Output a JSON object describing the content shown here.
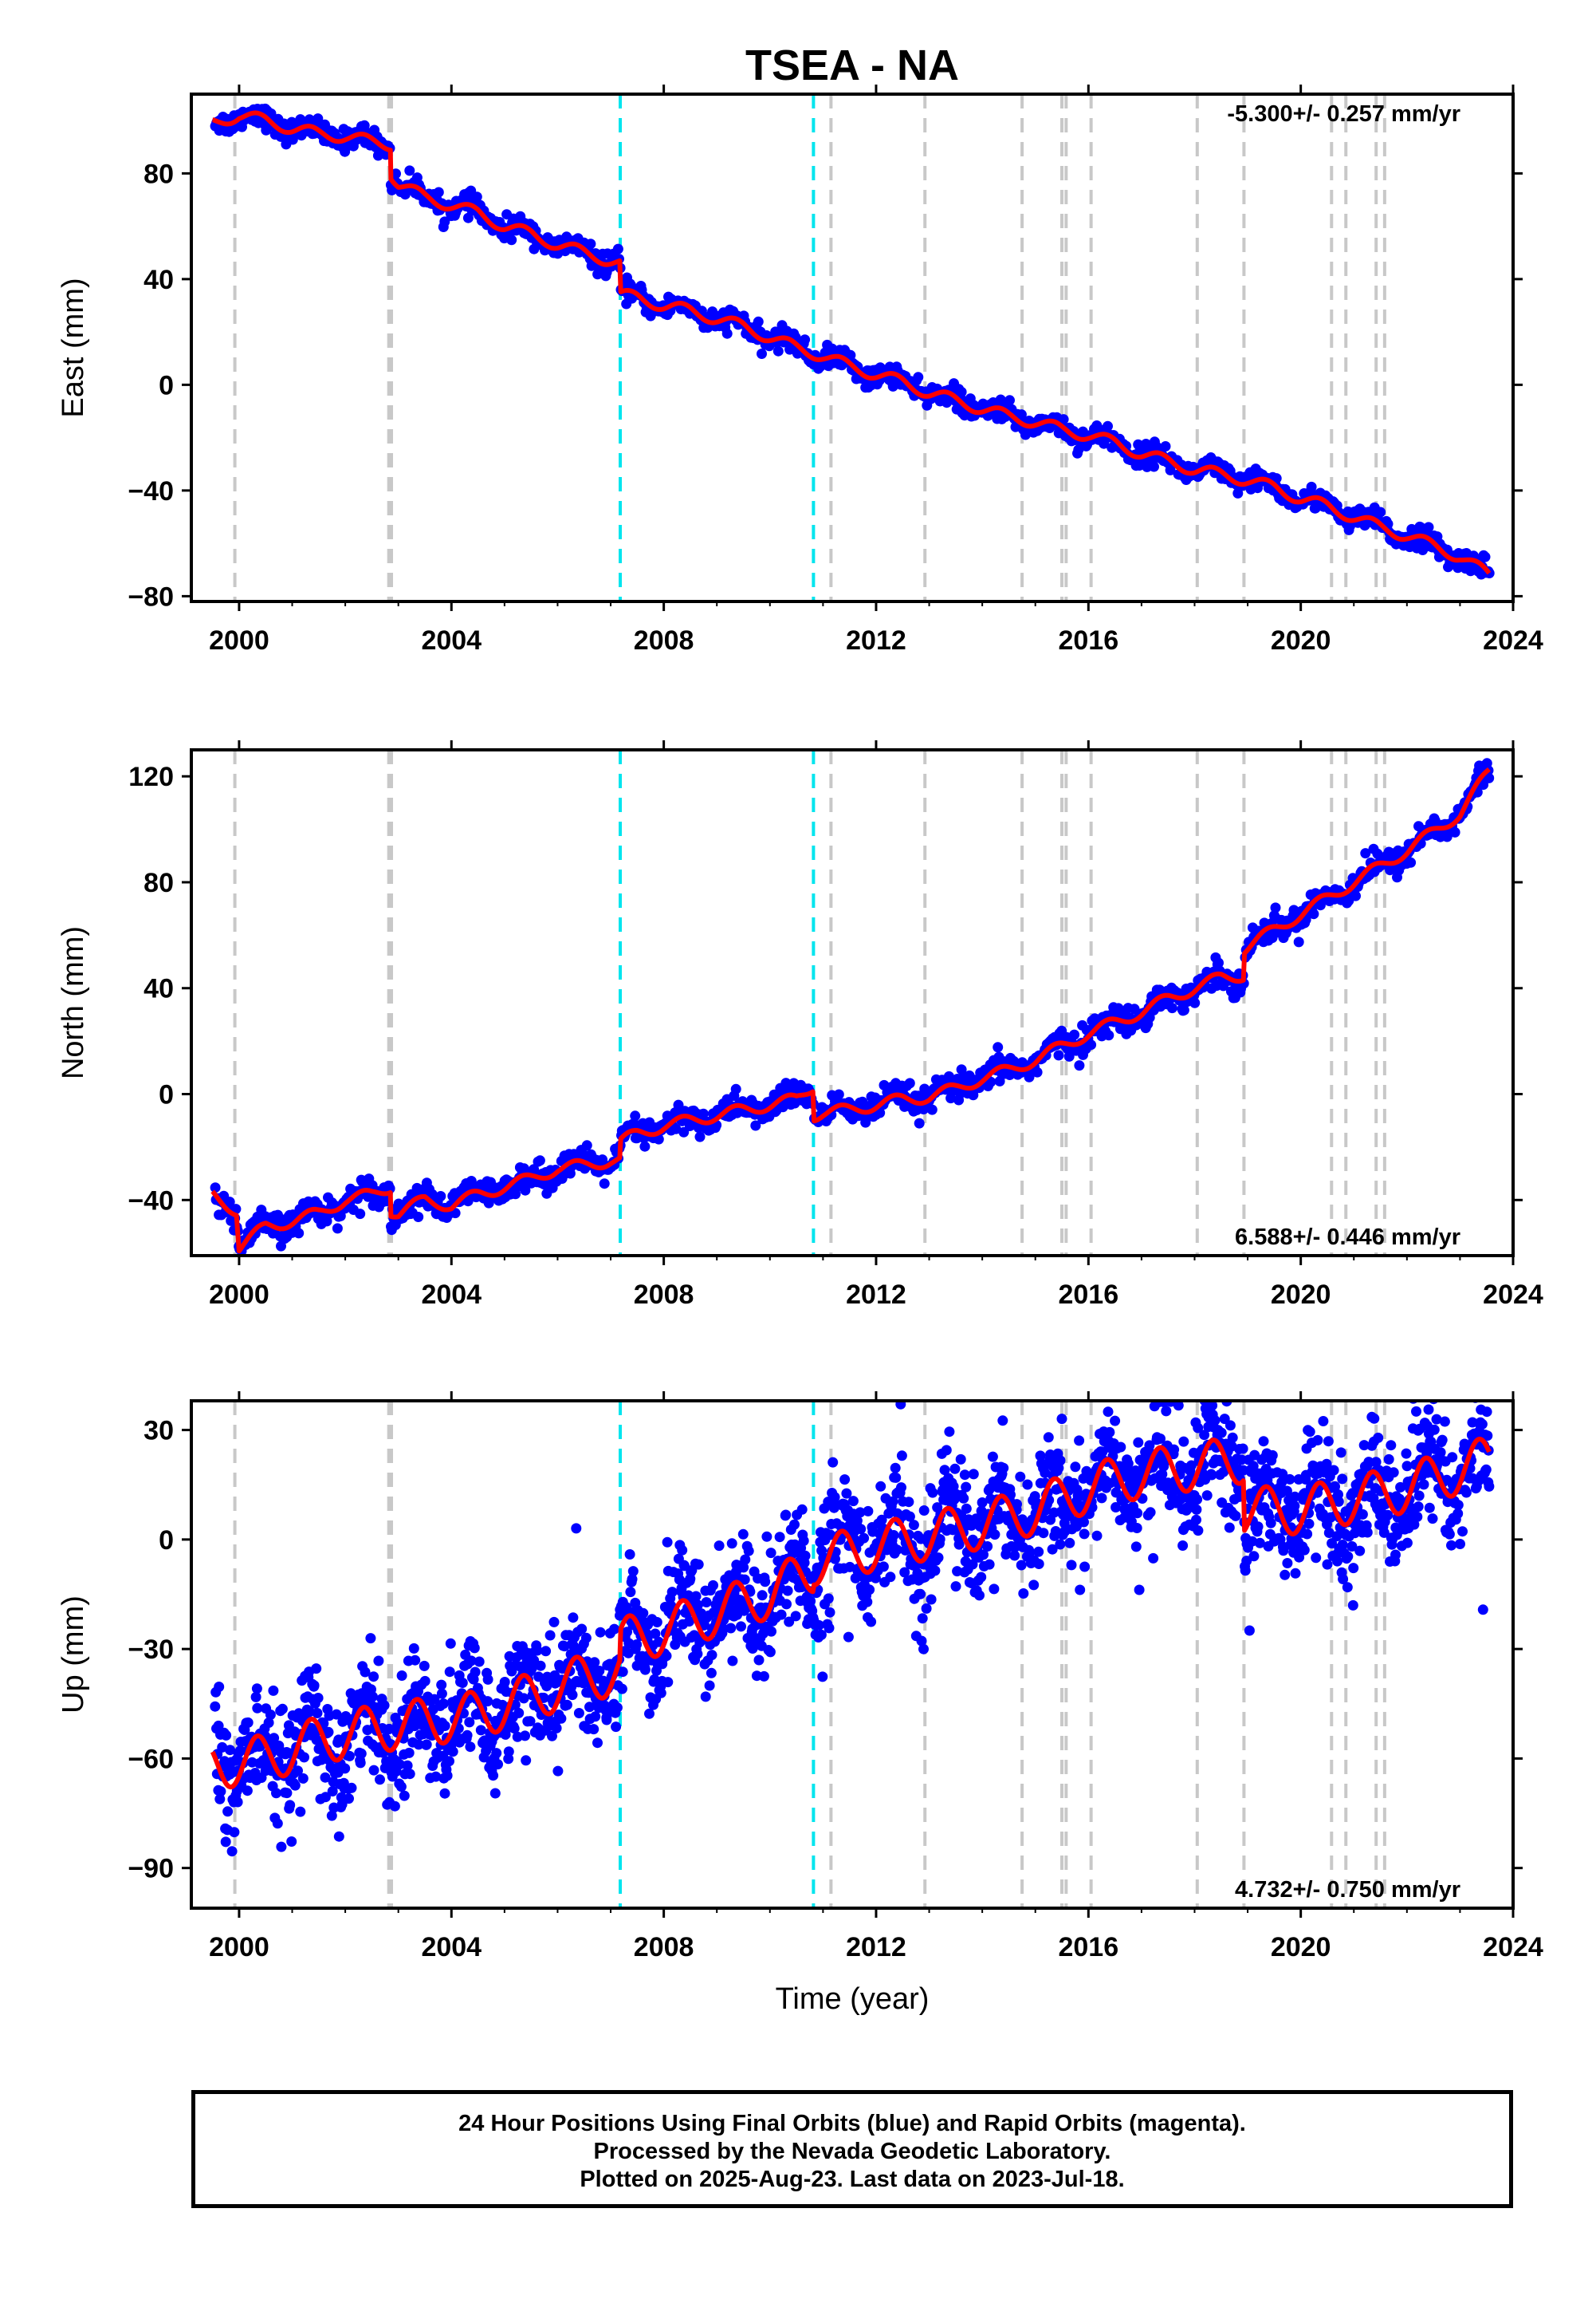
{
  "title": "TSEA - NA",
  "x_axis": {
    "label": "Time (year)",
    "range": [
      1999.1,
      2024.0
    ],
    "ticks": [
      2000,
      2004,
      2008,
      2012,
      2016,
      2020,
      2024
    ]
  },
  "colors": {
    "points": "#0000ff",
    "model": "#ff0000",
    "equipment_change": "#c8c8c8",
    "earthquake": "#00e5ee"
  },
  "event_lines": {
    "equipment_change": [
      1999.92,
      2002.82,
      2002.87,
      2011.15,
      2012.92,
      2014.75,
      2015.5,
      2015.58,
      2016.05,
      2018.05,
      2018.93,
      2020.58,
      2020.85,
      2021.42,
      2021.58
    ],
    "earthquake": [
      2007.18,
      2010.82
    ]
  },
  "chart_data": [
    {
      "type": "scatter",
      "component": "east",
      "ylabel": "East (mm)",
      "ylim": [
        -82,
        110
      ],
      "yticks": [
        -80,
        -40,
        0,
        40,
        80
      ],
      "rate_label": "-5.300+/- 0.257 mm/yr",
      "rate_position": "top-right",
      "series": [
        {
          "name": "",
          "kind": "model-line",
          "x": [
            1999.5,
            2000.0,
            2000.5,
            2001.0,
            2001.5,
            2002.0,
            2002.5,
            2002.85,
            2002.86,
            2003.0,
            2003.5,
            2004.0,
            2004.5,
            2005.0,
            2005.5,
            2006.0,
            2006.5,
            2007.0,
            2007.17,
            2007.19,
            2007.5,
            2008.0,
            2008.5,
            2009.0,
            2009.5,
            2010.0,
            2010.5,
            2011.0,
            2011.5,
            2012.0,
            2012.5,
            2013.0,
            2013.5,
            2014.0,
            2014.5,
            2015.0,
            2015.5,
            2016.0,
            2016.5,
            2017.0,
            2017.5,
            2018.0,
            2018.5,
            2019.0,
            2019.5,
            2020.0,
            2020.5,
            2021.0,
            2021.5,
            2022.0,
            2022.5,
            2023.0,
            2023.55
          ],
          "y": [
            99,
            102,
            100,
            97,
            95,
            94,
            92,
            91,
            80,
            76,
            71,
            68,
            65,
            60,
            57,
            53,
            50,
            47,
            46,
            34,
            33,
            30,
            28,
            25,
            22,
            18,
            14,
            11,
            7,
            4,
            1,
            -3,
            -6,
            -9,
            -12,
            -14,
            -17,
            -19,
            -22,
            -26,
            -29,
            -32,
            -34,
            -36,
            -39,
            -43,
            -46,
            -50,
            -54,
            -57,
            -61,
            -65,
            -72
          ]
        },
        {
          "name": "",
          "kind": "daily-points",
          "start": 1999.55,
          "end": 2023.55,
          "count": 1300,
          "noise": 2.0
        }
      ]
    },
    {
      "type": "scatter",
      "component": "north",
      "ylabel": "North (mm)",
      "ylim": [
        -61,
        130
      ],
      "yticks": [
        -40,
        0,
        40,
        80,
        120
      ],
      "rate_label": "6.588+/- 0.446 mm/yr",
      "rate_position": "bottom-right",
      "series": [
        {
          "name": "",
          "kind": "model-line",
          "x": [
            1999.5,
            1999.95,
            2000.0,
            2000.5,
            2001.0,
            2001.5,
            2002.0,
            2002.5,
            2002.85,
            2002.86,
            2003.0,
            2003.5,
            2004.0,
            2004.5,
            2005.0,
            2005.5,
            2006.0,
            2006.5,
            2007.0,
            2007.17,
            2007.19,
            2007.5,
            2008.0,
            2008.5,
            2009.0,
            2009.5,
            2010.0,
            2010.5,
            2010.81,
            2010.83,
            2011.0,
            2011.5,
            2012.0,
            2012.5,
            2013.0,
            2013.5,
            2014.0,
            2014.5,
            2015.0,
            2015.5,
            2016.0,
            2016.5,
            2017.0,
            2017.5,
            2018.0,
            2018.5,
            2018.92,
            2018.94,
            2019.5,
            2020.0,
            2020.5,
            2021.0,
            2021.5,
            2022.0,
            2022.5,
            2023.0,
            2023.55
          ],
          "y": [
            -38,
            -44,
            -58,
            -50,
            -48,
            -45,
            -40,
            -38,
            -35,
            -44,
            -45,
            -40,
            -42,
            -38,
            -35,
            -32,
            -28,
            -27,
            -25,
            -25,
            -18,
            -15,
            -12,
            -10,
            -8,
            -6,
            -4,
            -2,
            3,
            -8,
            -7,
            -6,
            -4,
            -2,
            -1,
            2,
            6,
            9,
            13,
            18,
            23,
            27,
            31,
            36,
            40,
            44,
            45,
            55,
            62,
            68,
            74,
            80,
            86,
            92,
            99,
            106,
            122
          ]
        },
        {
          "name": "",
          "kind": "daily-points",
          "start": 1999.55,
          "end": 2023.55,
          "count": 1300,
          "noise": 2.5
        }
      ]
    },
    {
      "type": "scatter",
      "component": "up",
      "ylabel": "Up (mm)",
      "ylim": [
        -101,
        38
      ],
      "yticks": [
        -90,
        -60,
        -30,
        0,
        30
      ],
      "rate_label": "4.732+/- 0.750 mm/yr",
      "rate_position": "bottom-right",
      "series": [
        {
          "name": "",
          "kind": "model-line",
          "x": [
            1999.5,
            2000.5,
            2001.5,
            2002.5,
            2003.5,
            2004.5,
            2005.5,
            2006.5,
            2007.17,
            2007.19,
            2008.0,
            2009.0,
            2010.0,
            2010.81,
            2010.83,
            2012.0,
            2013.0,
            2014.0,
            2015.0,
            2016.0,
            2017.0,
            2018.0,
            2018.92,
            2018.94,
            2020.0,
            2021.0,
            2022.0,
            2023.55
          ],
          "y": [
            -62,
            -60,
            -55,
            -52,
            -50,
            -48,
            -43,
            -38,
            -36,
            -28,
            -25,
            -20,
            -15,
            -8,
            -6,
            -2,
            1,
            4,
            8,
            14,
            18,
            20,
            22,
            8,
            8,
            11,
            14,
            22
          ],
          "amplitude": 6.5
        },
        {
          "name": "",
          "kind": "daily-points",
          "start": 1999.55,
          "end": 2023.55,
          "count": 2200,
          "noise": 7.5
        }
      ]
    }
  ],
  "caption": {
    "line1": "24 Hour Positions Using Final Orbits (blue) and Rapid Orbits (magenta).",
    "line2": "Processed by the Nevada Geodetic Laboratory.",
    "line3": "Plotted on 2025-Aug-23. Last data on 2023-Jul-18."
  }
}
